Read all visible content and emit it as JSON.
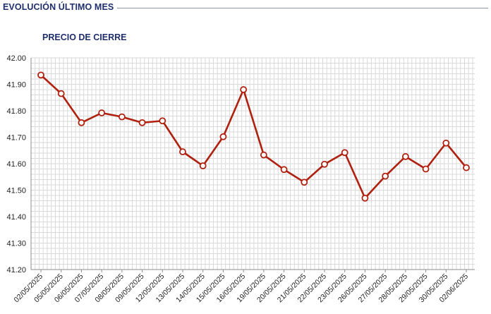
{
  "header": {
    "section_title": "EVOLUCIÓN ÚLTIMO MES"
  },
  "colors": {
    "title": "#1f2f6e",
    "line": "#b0200f",
    "marker_fill": "#ffffff",
    "grid": "#d9d9d9",
    "axis": "#8c8c8c"
  },
  "chart_data": {
    "type": "line",
    "title": "PRECIO DE CIERRE",
    "xlabel": "",
    "ylabel": "",
    "ylim": [
      41.2,
      42.0
    ],
    "yticks": [
      "42.00",
      "41.90",
      "41.80",
      "41.70",
      "41.60",
      "41.50",
      "41.40",
      "41.30",
      "41.20"
    ],
    "grid": true,
    "legend": "none",
    "categories": [
      "02/05/2025",
      "05/05/2025",
      "06/05/2025",
      "07/05/2025",
      "08/05/2025",
      "09/05/2025",
      "12/05/2025",
      "13/05/2025",
      "14/05/2025",
      "15/05/2025",
      "16/05/2025",
      "19/05/2025",
      "20/05/2025",
      "21/05/2025",
      "22/05/2025",
      "23/05/2025",
      "26/05/2025",
      "27/05/2025",
      "28/05/2025",
      "29/05/2025",
      "30/05/2025",
      "02/06/2025"
    ],
    "series": [
      {
        "values": [
          41.935,
          41.865,
          41.755,
          41.792,
          41.777,
          41.755,
          41.762,
          41.645,
          41.592,
          41.702,
          41.88,
          41.633,
          41.578,
          41.53,
          41.598,
          41.642,
          41.47,
          41.553,
          41.627,
          41.58,
          41.678,
          41.585
        ]
      }
    ]
  }
}
